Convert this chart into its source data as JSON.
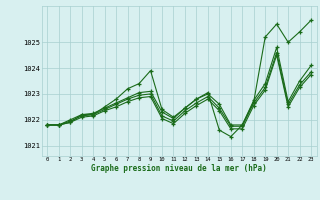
{
  "xlabel": "Graphe pression niveau de la mer (hPa)",
  "background_color": "#d8f0f0",
  "grid_color": "#a8d0d0",
  "line_color": "#1a6b1a",
  "ylim": [
    1020.6,
    1026.4
  ],
  "yticks": [
    1021,
    1022,
    1023,
    1024,
    1025
  ],
  "xticks": [
    0,
    1,
    2,
    3,
    4,
    5,
    6,
    7,
    8,
    9,
    10,
    11,
    12,
    13,
    14,
    15,
    16,
    17,
    18,
    19,
    20,
    21,
    22,
    23
  ],
  "series": [
    [
      1021.8,
      1021.8,
      1021.9,
      1022.2,
      1022.2,
      1022.5,
      1022.8,
      1023.2,
      1023.4,
      1023.9,
      1022.4,
      1022.1,
      1022.45,
      1022.8,
      1023.05,
      1021.6,
      1021.35,
      1021.8,
      1022.7,
      1025.2,
      1025.7,
      1025.0,
      1025.4,
      1025.85
    ],
    [
      1021.8,
      1021.8,
      1022.0,
      1022.2,
      1022.25,
      1022.45,
      1022.65,
      1022.85,
      1023.05,
      1023.1,
      1022.3,
      1022.05,
      1022.45,
      1022.8,
      1023.0,
      1022.6,
      1021.8,
      1021.8,
      1022.75,
      1023.4,
      1024.8,
      1022.7,
      1023.5,
      1024.1
    ],
    [
      1021.8,
      1021.8,
      1021.95,
      1022.15,
      1022.2,
      1022.4,
      1022.6,
      1022.8,
      1022.95,
      1023.0,
      1022.15,
      1021.95,
      1022.35,
      1022.65,
      1022.9,
      1022.45,
      1021.75,
      1021.75,
      1022.65,
      1023.25,
      1024.6,
      1022.6,
      1023.35,
      1023.85
    ],
    [
      1021.8,
      1021.8,
      1021.9,
      1022.1,
      1022.15,
      1022.35,
      1022.5,
      1022.7,
      1022.85,
      1022.9,
      1022.05,
      1021.85,
      1022.25,
      1022.55,
      1022.8,
      1022.35,
      1021.65,
      1021.65,
      1022.55,
      1023.15,
      1024.5,
      1022.5,
      1023.25,
      1023.75
    ]
  ]
}
